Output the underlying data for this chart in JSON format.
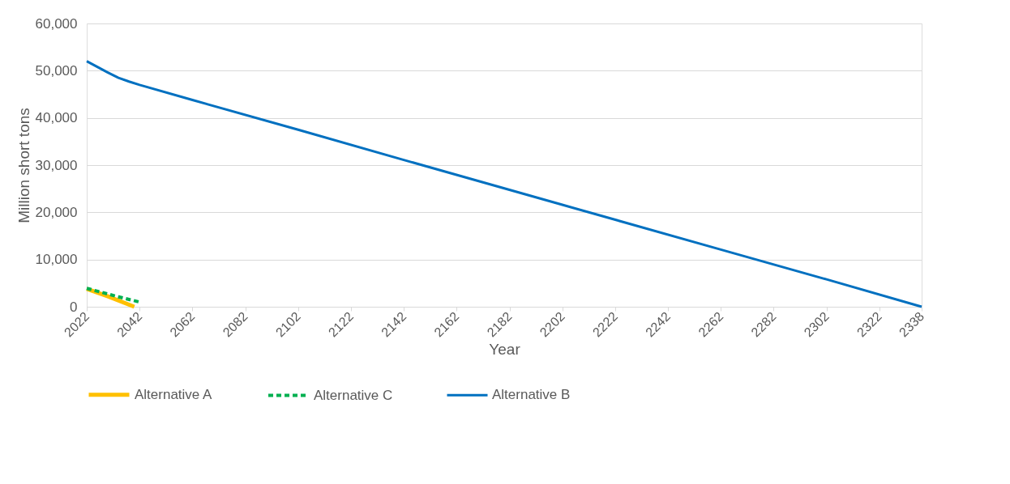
{
  "chart_data": {
    "type": "line",
    "xlabel": "Year",
    "ylabel": "Million short tons",
    "xlim": [
      2022,
      2338
    ],
    "xticks": [
      2022,
      2042,
      2062,
      2082,
      2102,
      2122,
      2142,
      2162,
      2182,
      2202,
      2222,
      2242,
      2262,
      2282,
      2302,
      2322,
      2338
    ],
    "ylim": [
      0,
      60000
    ],
    "yticks": [
      0,
      {
        "value": 10000,
        "label": "10,000"
      },
      {
        "value": 20000,
        "label": "20,000"
      },
      {
        "value": 30000,
        "label": "30,000"
      },
      {
        "value": 40000,
        "label": "40,000"
      },
      {
        "value": 50000,
        "label": "50,000"
      },
      {
        "value": 60000,
        "label": "60,000"
      }
    ],
    "grid": "y",
    "legend": "bottom",
    "series": [
      {
        "name": "Alternative A",
        "color": "#ffc000",
        "line_style": "solid",
        "x": [
          2022,
          2030,
          2040
        ],
        "values": [
          3800,
          2200,
          0
        ]
      },
      {
        "name": "Alternative C",
        "color": "#00b050",
        "line_style": "dashed",
        "x": [
          2022,
          2030,
          2034,
          2042
        ],
        "values": [
          3900,
          2700,
          2100,
          1000
        ]
      },
      {
        "name": "Alternative B",
        "color": "#0070c0",
        "line_style": "solid",
        "x": [
          2022,
          2026,
          2030,
          2034,
          2038,
          2042,
          2062,
          2102,
          2142,
          2202,
          2262,
          2302,
          2338
        ],
        "values": [
          52000,
          50800,
          49600,
          48500,
          47700,
          47000,
          43800,
          37500,
          31100,
          21600,
          12100,
          5800,
          0
        ]
      }
    ]
  }
}
